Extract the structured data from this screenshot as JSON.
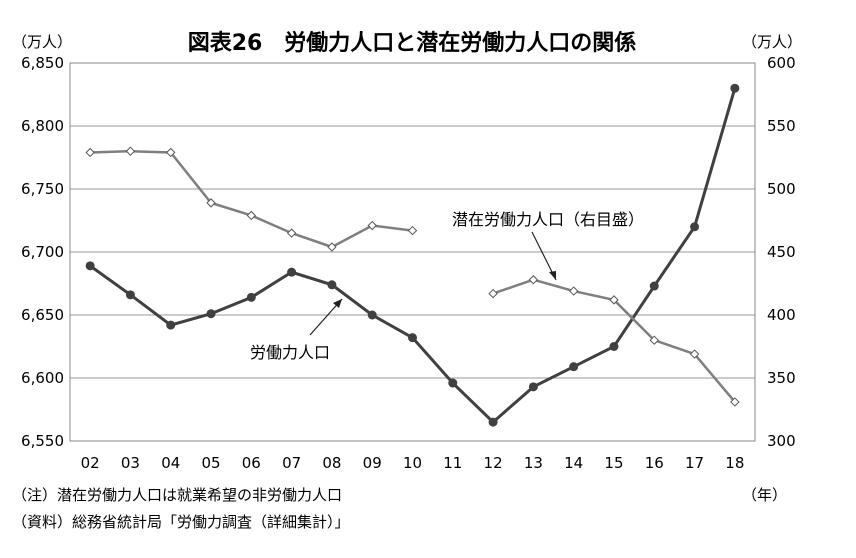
{
  "chart_data": {
    "type": "line",
    "title": "図表26　労働力人口と潜在労働力人口の関係",
    "y_left_unit": "（万人）",
    "y_right_unit": "（万人）",
    "x_unit": "（年）",
    "x": [
      "02",
      "03",
      "04",
      "05",
      "06",
      "07",
      "08",
      "09",
      "10",
      "11",
      "12",
      "13",
      "14",
      "15",
      "16",
      "17",
      "18"
    ],
    "y_left_ticks": [
      "6,850",
      "6,800",
      "6,750",
      "6,700",
      "6,650",
      "6,600",
      "6,550"
    ],
    "y_right_ticks": [
      "600",
      "550",
      "500",
      "450",
      "400",
      "350",
      "300"
    ],
    "y_left_range": [
      6550,
      6850
    ],
    "y_right_range": [
      300,
      600
    ],
    "grid": true,
    "series": [
      {
        "name": "労働力人口",
        "axis": "left",
        "marker": "filled-circle",
        "color": "#404040",
        "values": [
          6689,
          6666,
          6642,
          6651,
          6664,
          6684,
          6674,
          6650,
          6632,
          6596,
          6565,
          6593,
          6609,
          6625,
          6673,
          6720,
          6830
        ]
      },
      {
        "name": "潜在労働力人口（右目盛）",
        "axis": "right",
        "marker": "open-diamond",
        "color": "#7f7f7f",
        "segments": [
          {
            "start": 0,
            "values": [
              529,
              530,
              529,
              489,
              479,
              465,
              454,
              471,
              467
            ]
          },
          {
            "start": 10,
            "values": [
              417,
              428,
              419,
              412,
              380,
              369,
              331
            ]
          }
        ]
      }
    ],
    "annotations": [
      {
        "text": "労働力人口",
        "series": 0
      },
      {
        "text": "潜在労働力人口（右目盛）",
        "series": 1
      }
    ],
    "notes": [
      "（注）潜在労働力人口は就業希望の非労働力人口",
      "（資料）総務省統計局「労働力調査（詳細集計）」"
    ]
  }
}
